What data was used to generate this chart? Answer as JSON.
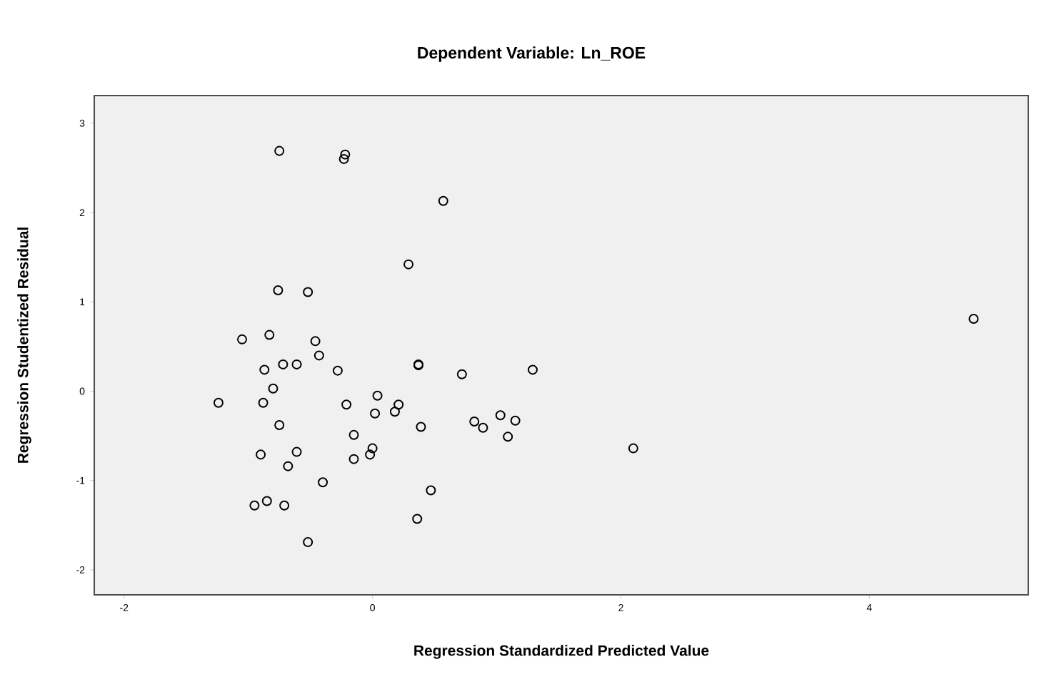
{
  "chart_data": {
    "type": "scatter",
    "title": "Dependent Variable: Ln_ROE",
    "xlabel": "Regression Standardized Predicted Value",
    "ylabel": "Regression Studentized Residual",
    "x": [
      -1.05,
      -0.83,
      -0.46,
      -0.43,
      -0.87,
      -0.72,
      -0.61,
      -0.28,
      0.37,
      0.37,
      0.72,
      1.29,
      -0.8,
      -1.24,
      -0.88,
      -0.21,
      0.04,
      0.02,
      0.21,
      0.18,
      0.39,
      0.82,
      0.89,
      1.03,
      1.15,
      1.09,
      -0.75,
      -0.15,
      -0.9,
      -0.61,
      -0.68,
      -0.15,
      0.0,
      -0.02,
      -0.4,
      0.47,
      -0.95,
      -0.85,
      -0.71,
      0.36,
      -0.52,
      2.1,
      4.84,
      -0.75,
      -0.22,
      -0.23,
      0.57,
      0.29,
      -0.76,
      -0.52
    ],
    "values": [
      0.58,
      0.63,
      0.56,
      0.4,
      0.24,
      0.3,
      0.3,
      0.23,
      0.29,
      0.3,
      0.19,
      0.24,
      0.03,
      -0.13,
      -0.13,
      -0.15,
      -0.05,
      -0.25,
      -0.15,
      -0.23,
      -0.4,
      -0.34,
      -0.41,
      -0.27,
      -0.33,
      -0.51,
      -0.38,
      -0.49,
      -0.71,
      -0.68,
      -0.84,
      -0.76,
      -0.64,
      -0.71,
      -1.02,
      -1.11,
      -1.28,
      -1.23,
      -1.28,
      -1.43,
      -1.69,
      -0.64,
      0.81,
      2.69,
      2.65,
      2.6,
      2.13,
      1.42,
      1.13,
      1.11
    ],
    "color": "#000000",
    "marker": "circle",
    "xlim": [
      -2.24,
      5.28
    ],
    "ylim": [
      -2.28,
      3.31
    ],
    "xticks": [
      -2,
      0,
      2,
      4
    ],
    "yticks": [
      -2,
      -1,
      0,
      1,
      2,
      3
    ]
  }
}
